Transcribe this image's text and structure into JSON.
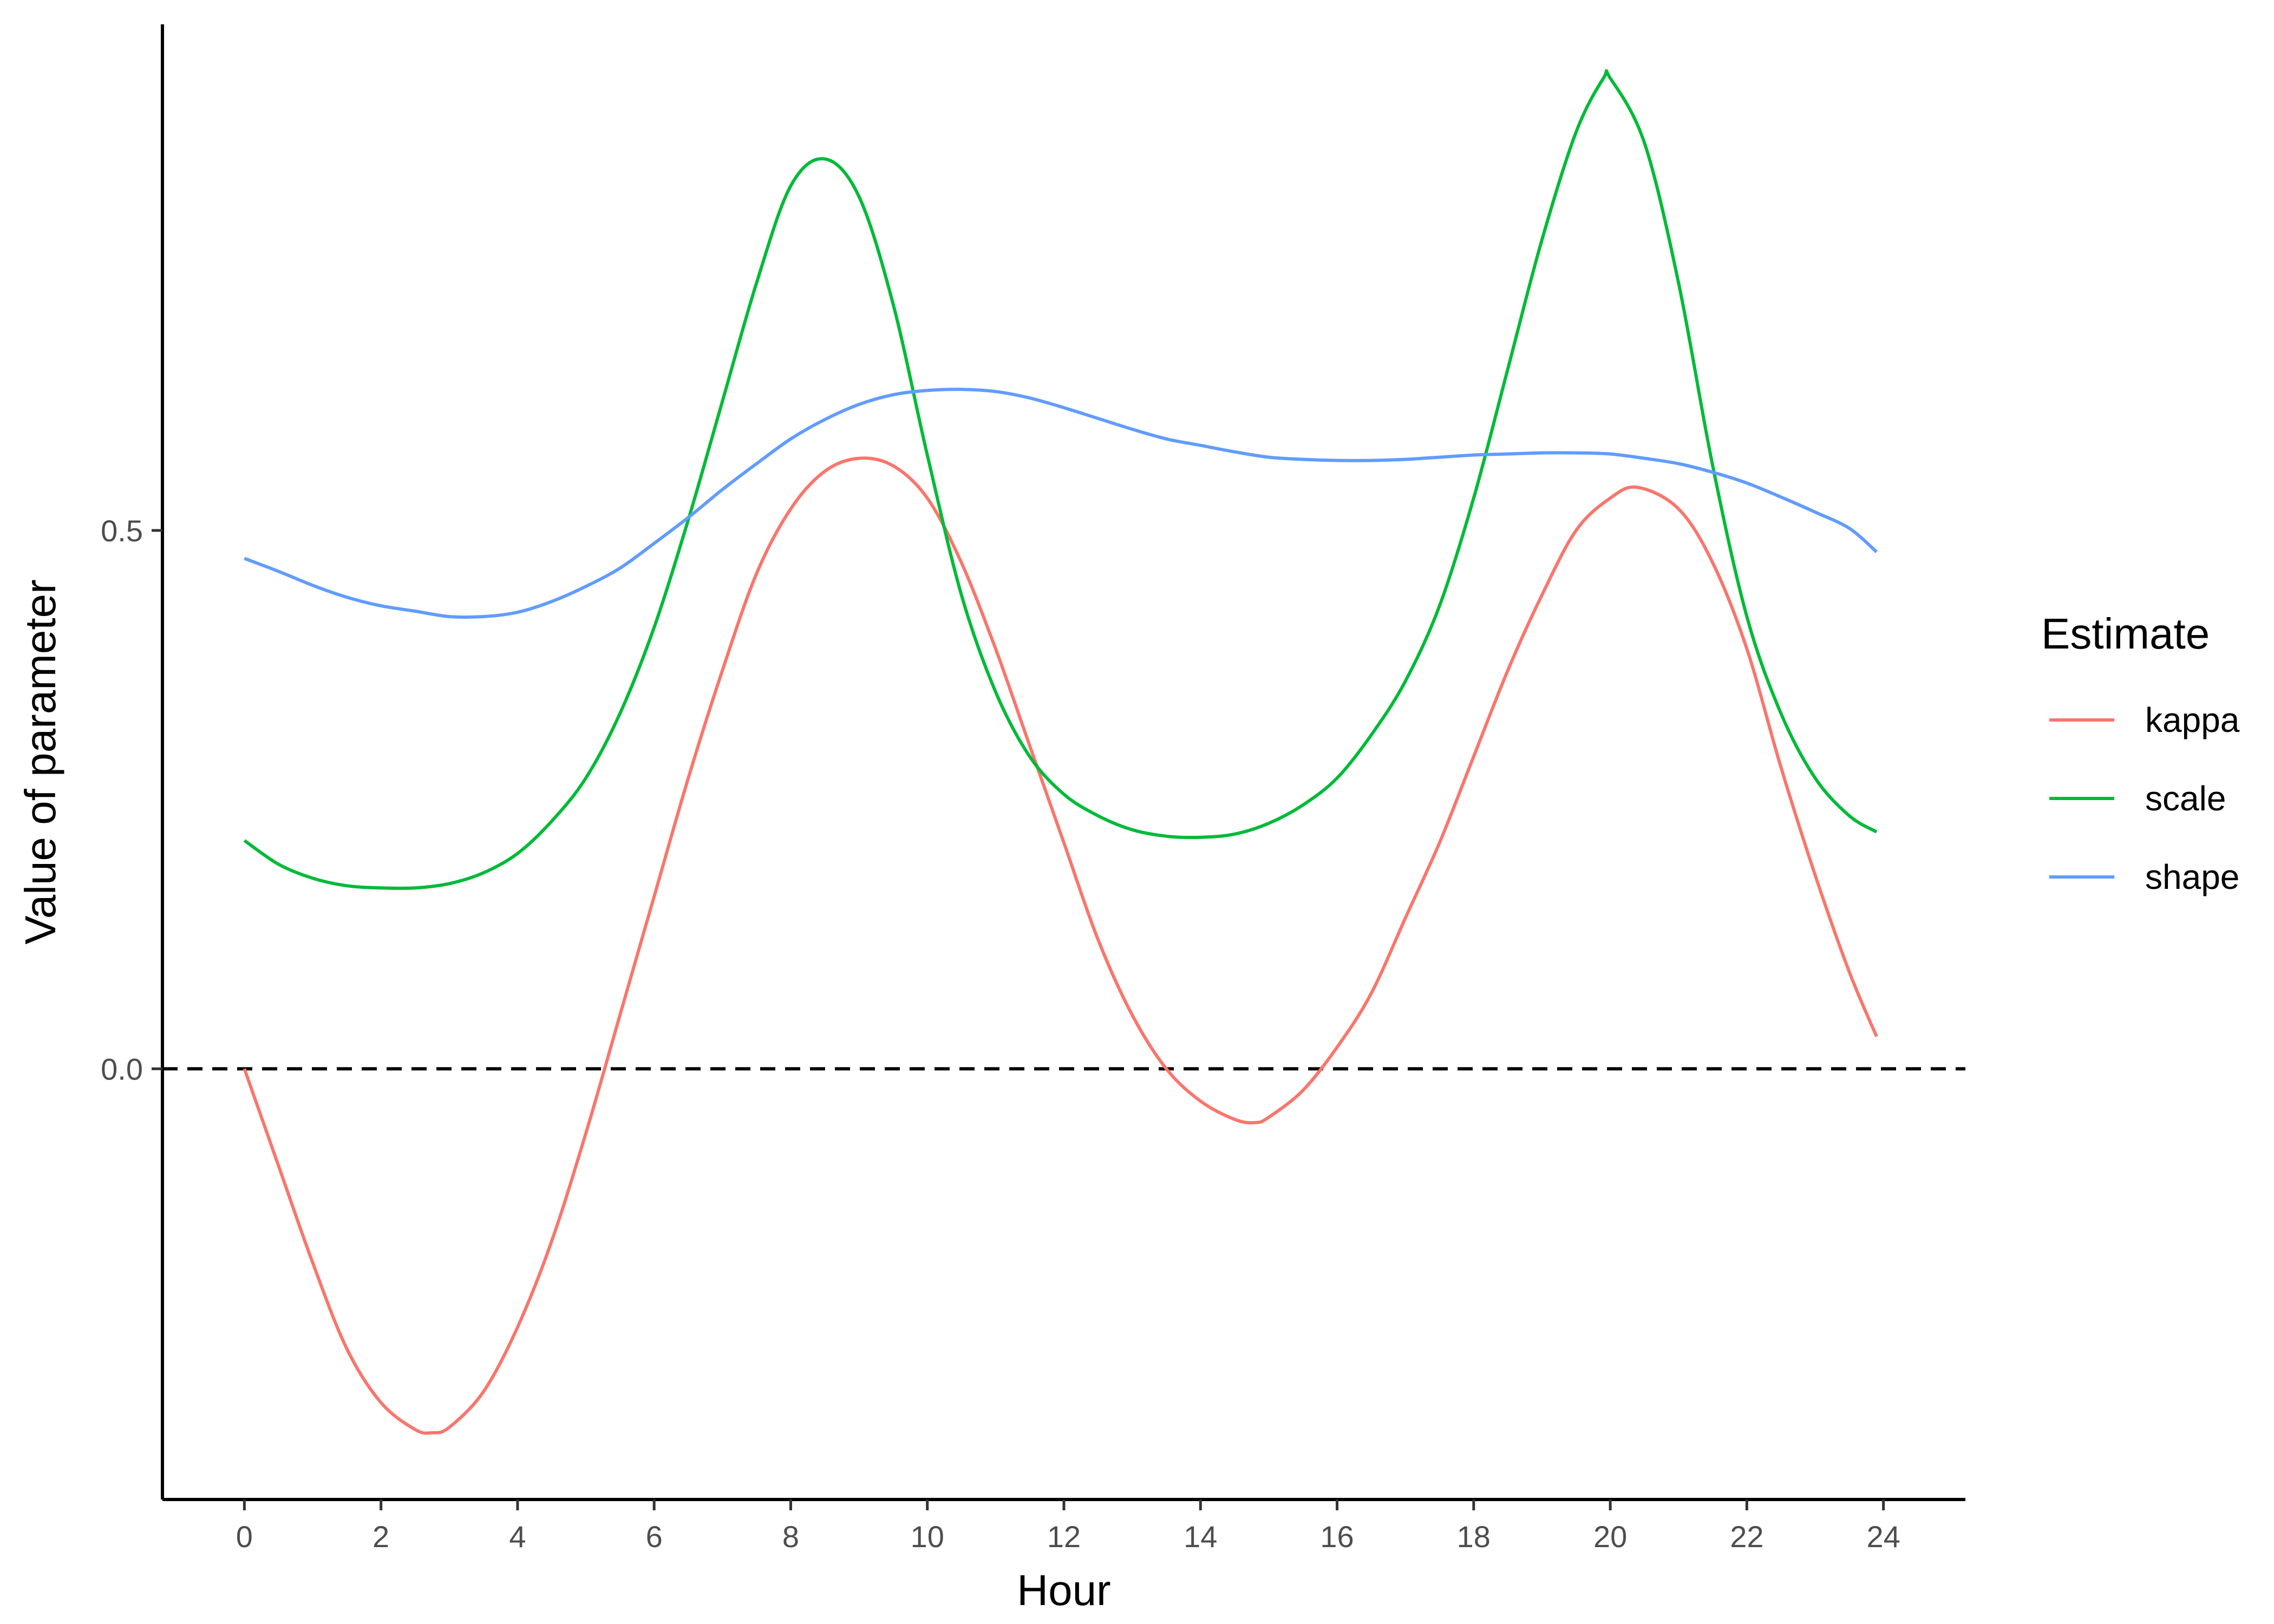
{
  "chart_data": {
    "type": "line",
    "title": "",
    "xlabel": "Hour",
    "ylabel": "Value of parameter",
    "xlim": [
      -1.2,
      25.2
    ],
    "ylim": [
      -0.4,
      0.97
    ],
    "x_ticks": [
      0,
      2,
      4,
      6,
      8,
      10,
      12,
      14,
      16,
      18,
      20,
      22,
      24
    ],
    "y_ticks": [
      0.0,
      0.5
    ],
    "y_tick_labels": [
      "0.0",
      "0.5"
    ],
    "grid": false,
    "reference_line": {
      "y": 0.0,
      "style": "dashed",
      "color": "#000000"
    },
    "legend": {
      "title": "Estimate",
      "position": "right"
    },
    "series": [
      {
        "name": "kappa",
        "color": "#F8766D",
        "x": [
          0,
          0.5,
          1,
          1.5,
          2,
          2.5,
          2.75,
          3,
          3.5,
          4,
          4.5,
          5,
          5.5,
          6,
          6.5,
          7,
          7.5,
          8,
          8.5,
          9,
          9.5,
          10,
          10.5,
          11,
          11.5,
          12,
          12.5,
          13,
          13.5,
          14,
          14.5,
          14.8,
          15,
          15.5,
          16,
          16.5,
          17,
          17.5,
          18,
          18.5,
          19,
          19.5,
          20,
          20.4,
          21,
          21.5,
          22,
          22.5,
          23,
          23.5,
          23.9
        ],
        "values": [
          0.0,
          -0.09,
          -0.18,
          -0.26,
          -0.31,
          -0.335,
          -0.338,
          -0.333,
          -0.3,
          -0.24,
          -0.16,
          -0.06,
          0.05,
          0.16,
          0.27,
          0.37,
          0.46,
          0.52,
          0.555,
          0.567,
          0.56,
          0.53,
          0.47,
          0.39,
          0.3,
          0.21,
          0.12,
          0.05,
          0.0,
          -0.03,
          -0.047,
          -0.05,
          -0.045,
          -0.02,
          0.02,
          0.07,
          0.14,
          0.21,
          0.29,
          0.37,
          0.44,
          0.5,
          0.53,
          0.54,
          0.52,
          0.47,
          0.39,
          0.28,
          0.18,
          0.09,
          0.03
        ]
      },
      {
        "name": "scale",
        "color": "#00BA38",
        "x": [
          0,
          0.5,
          1,
          1.5,
          2,
          2.5,
          3,
          3.5,
          4,
          4.5,
          5,
          5.5,
          6,
          6.5,
          7,
          7.5,
          8,
          8.5,
          9,
          9.5,
          10,
          10.5,
          11,
          11.5,
          12,
          12.5,
          13,
          13.5,
          14,
          14.5,
          15,
          15.5,
          16,
          16.5,
          17,
          17.5,
          18,
          18.5,
          19,
          19.5,
          19.9,
          20,
          20.5,
          21,
          21.5,
          22,
          22.5,
          23,
          23.5,
          23.9
        ],
        "values": [
          0.212,
          0.19,
          0.177,
          0.17,
          0.168,
          0.168,
          0.172,
          0.182,
          0.2,
          0.23,
          0.27,
          0.33,
          0.41,
          0.51,
          0.62,
          0.73,
          0.82,
          0.845,
          0.81,
          0.71,
          0.57,
          0.44,
          0.35,
          0.29,
          0.255,
          0.235,
          0.222,
          0.216,
          0.215,
          0.218,
          0.228,
          0.245,
          0.27,
          0.31,
          0.36,
          0.43,
          0.53,
          0.65,
          0.77,
          0.87,
          0.92,
          0.92,
          0.86,
          0.73,
          0.56,
          0.42,
          0.33,
          0.27,
          0.235,
          0.22
        ]
      },
      {
        "name": "shape",
        "color": "#619CFF",
        "x": [
          0,
          0.5,
          1,
          1.5,
          2,
          2.5,
          3,
          3.5,
          4,
          4.5,
          5,
          5.5,
          6,
          6.5,
          7,
          7.5,
          8,
          8.5,
          9,
          9.5,
          10,
          10.5,
          11,
          11.5,
          12,
          12.5,
          13,
          13.5,
          14,
          14.5,
          15,
          15.5,
          16,
          16.5,
          17,
          17.5,
          18,
          18.5,
          19,
          19.5,
          20,
          20.5,
          21,
          21.5,
          22,
          22.5,
          23,
          23.5,
          23.9
        ],
        "values": [
          0.474,
          0.462,
          0.449,
          0.438,
          0.43,
          0.425,
          0.42,
          0.42,
          0.424,
          0.434,
          0.448,
          0.465,
          0.488,
          0.512,
          0.538,
          0.562,
          0.585,
          0.603,
          0.617,
          0.626,
          0.63,
          0.631,
          0.629,
          0.623,
          0.614,
          0.604,
          0.594,
          0.585,
          0.579,
          0.573,
          0.568,
          0.566,
          0.565,
          0.565,
          0.566,
          0.568,
          0.57,
          0.571,
          0.572,
          0.572,
          0.571,
          0.567,
          0.562,
          0.554,
          0.544,
          0.531,
          0.517,
          0.502,
          0.48
        ]
      }
    ]
  }
}
